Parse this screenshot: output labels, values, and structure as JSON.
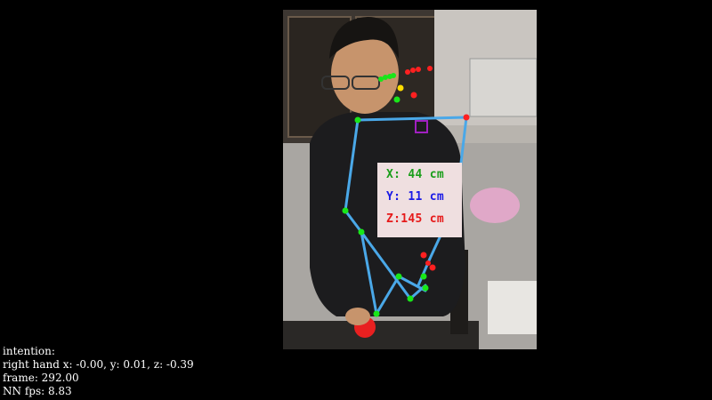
{
  "overlay": {
    "x_label": "X: 44 cm",
    "y_label": "Y: 11 cm",
    "z_label": "Z:145 cm",
    "colors": {
      "x": "#1a9e1a",
      "y": "#1a1ae6",
      "z": "#e61a1a",
      "skeleton": "#4aa8e8",
      "joint": "#19e619",
      "keypoint": "#ff2020",
      "marker": "#a020c0"
    }
  },
  "stats": {
    "intention": "intention:",
    "right_hand": "right hand x: -0.00, y: 0.01, z: -0.39",
    "frame": "frame: 292.00",
    "fps": "NN fps: 8.83"
  }
}
